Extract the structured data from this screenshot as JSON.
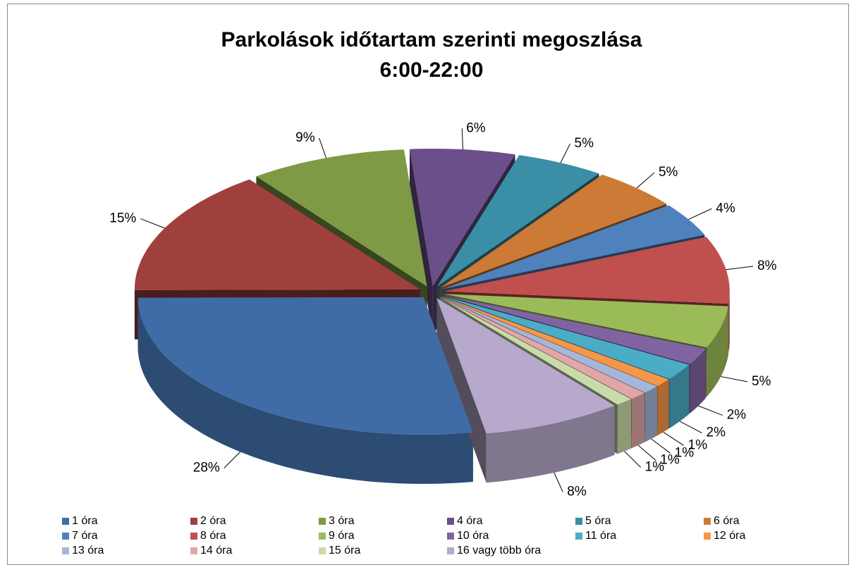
{
  "chart_data": {
    "type": "pie",
    "title": "Parkolások időtartam szerinti megoszlása",
    "subtitle": "6:00-22:00",
    "categories": [
      "1 óra",
      "2 óra",
      "3 óra",
      "4 óra",
      "5 óra",
      "6 óra",
      "7 óra",
      "8 óra",
      "9 óra",
      "10 óra",
      "11 óra",
      "12 óra",
      "13 óra",
      "14 óra",
      "15 óra",
      "16 vagy több óra"
    ],
    "values": [
      28,
      15,
      9,
      6,
      5,
      5,
      4,
      8,
      5,
      2,
      2,
      1,
      1,
      1,
      1,
      8
    ],
    "value_labels": [
      "28%",
      "15%",
      "9%",
      "6%",
      "5%",
      "5%",
      "4%",
      "8%",
      "5%",
      "2%",
      "2%",
      "1%",
      "1%",
      "1%",
      "1%",
      "8%"
    ],
    "colors": [
      "#3f6ca6",
      "#a0403d",
      "#7f9a45",
      "#6a4f8a",
      "#3a8ea5",
      "#cc7a35",
      "#4f81bd",
      "#c0504d",
      "#9bbb59",
      "#8064a2",
      "#4bacc6",
      "#f79646",
      "#a5b6d8",
      "#e0a7a6",
      "#c9dbaa",
      "#b7a9cb"
    ],
    "legend": "bottom"
  }
}
